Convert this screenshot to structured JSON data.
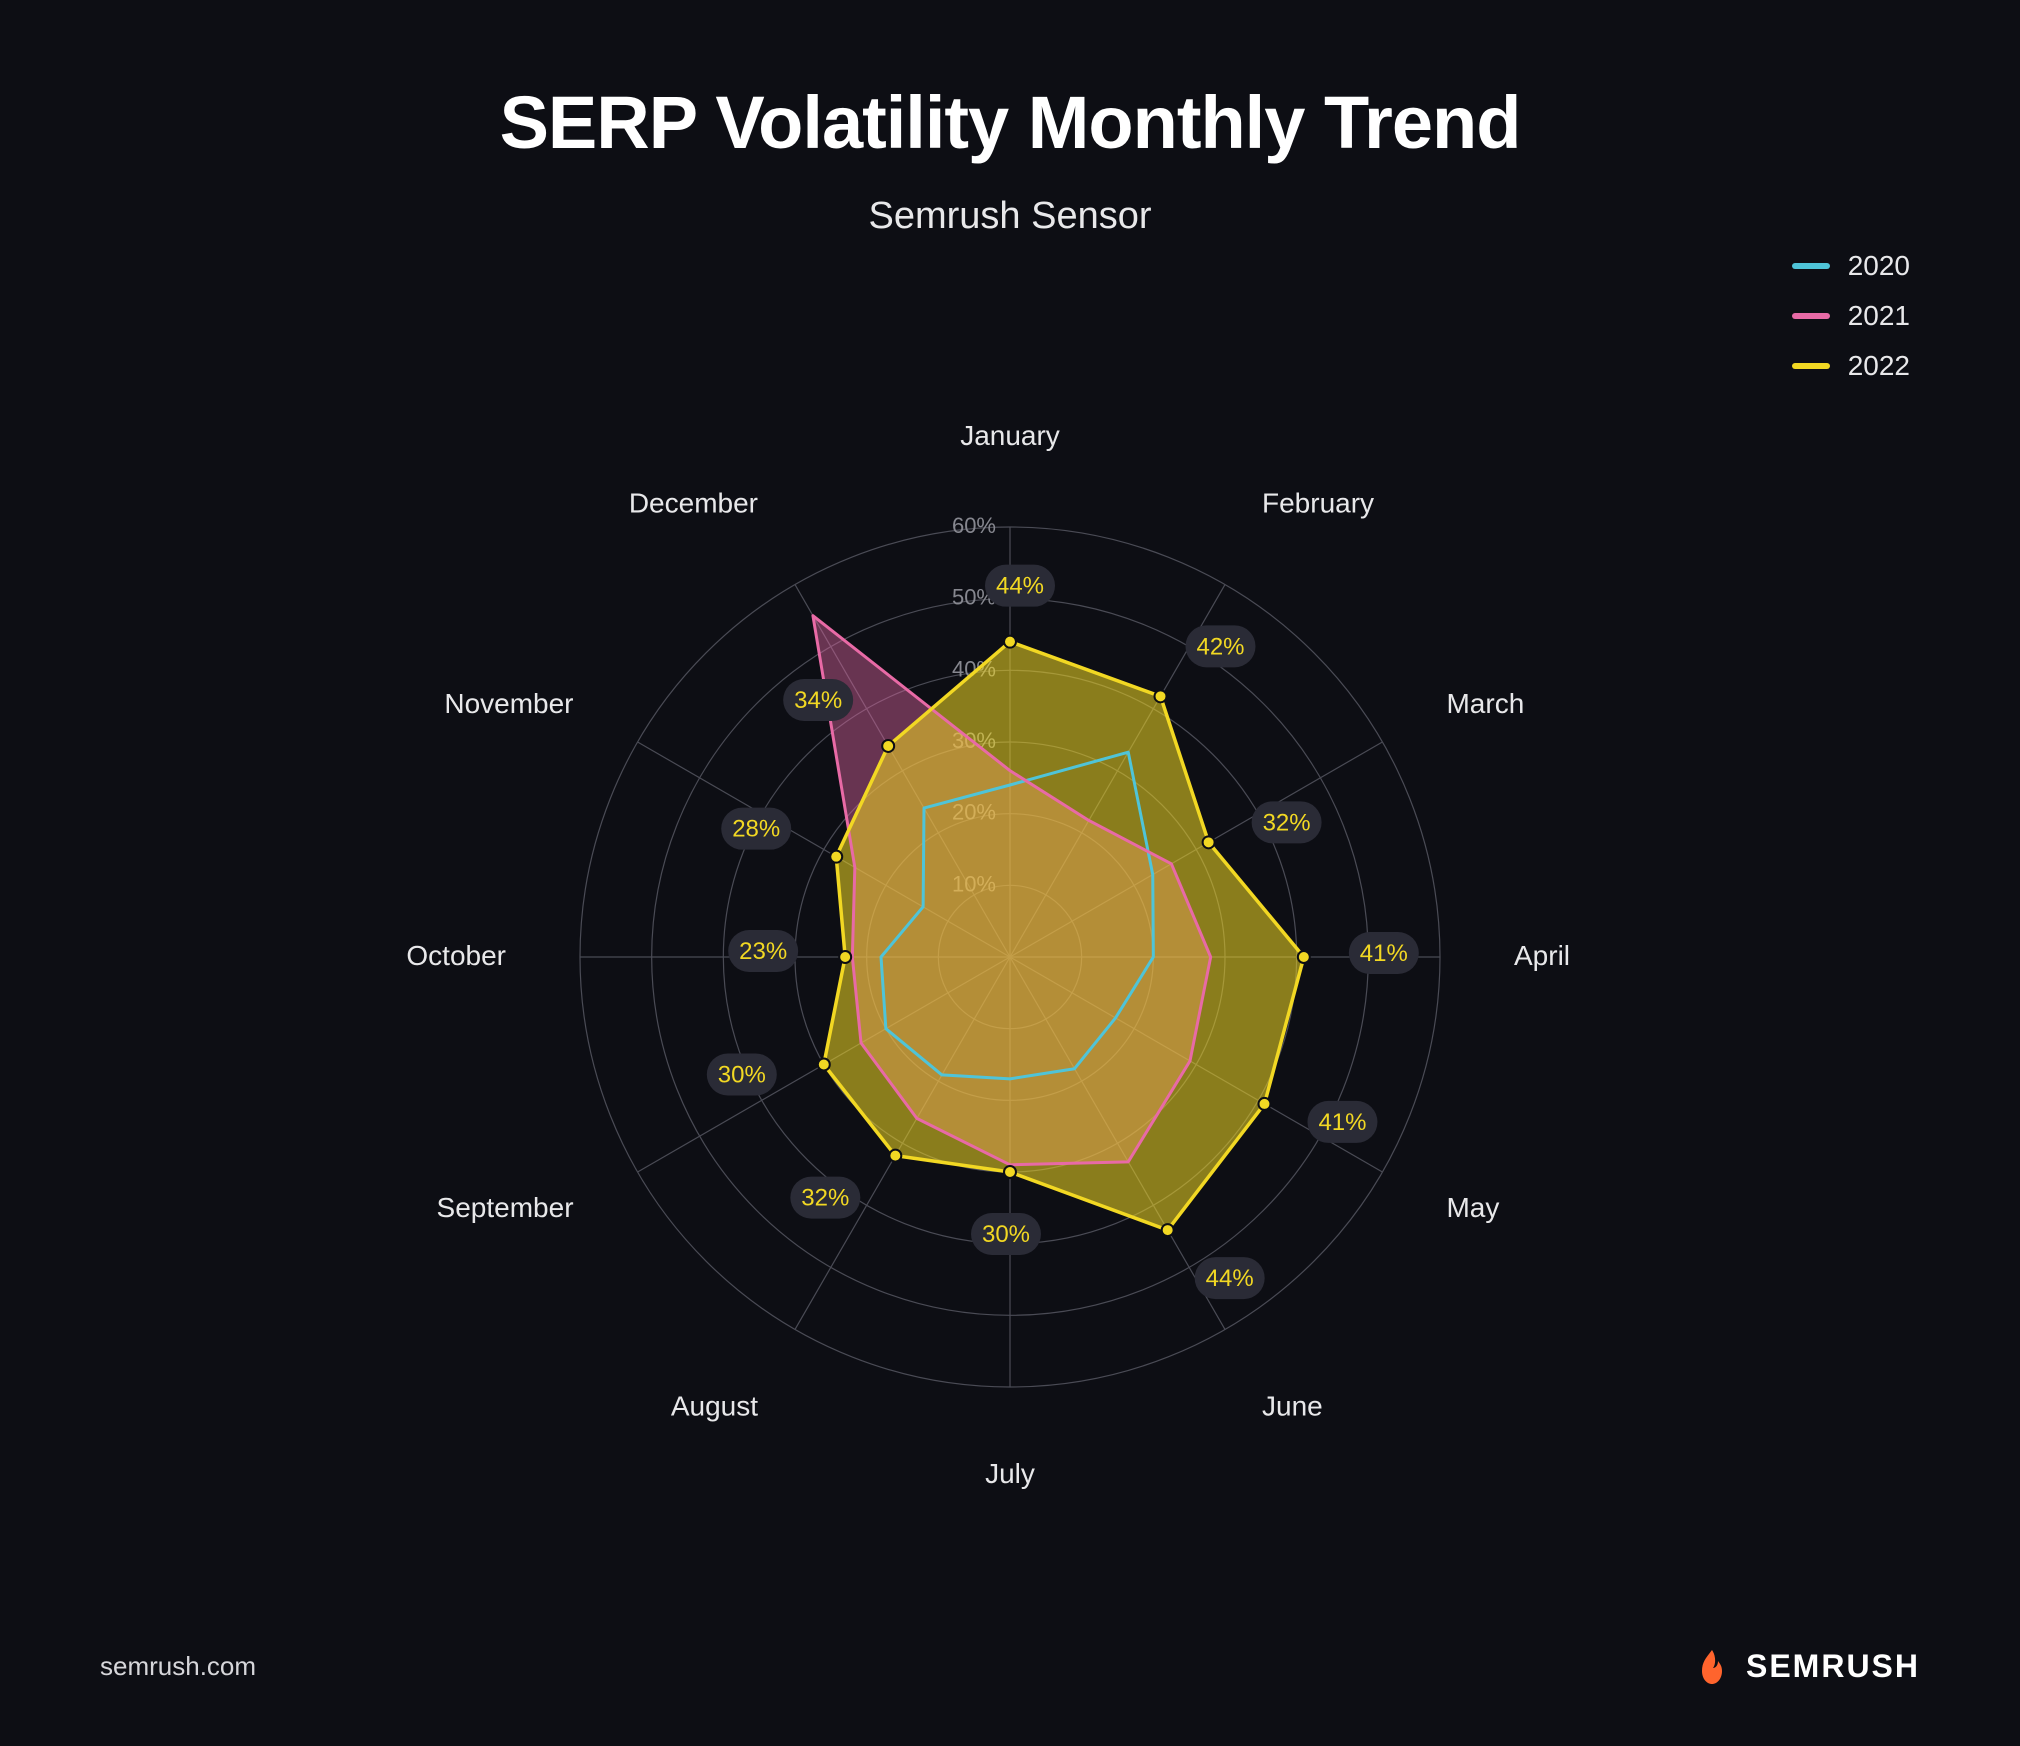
{
  "title": "SERP Volatility Monthly Trend",
  "subtitle": "Semrush Sensor",
  "footer_source": "semrush.com",
  "brand": "SEMRUSH",
  "brand_icon_color": "#ff642d",
  "background_color": "#0d0e14",
  "chart": {
    "type": "radar",
    "categories": [
      "January",
      "February",
      "March",
      "April",
      "May",
      "June",
      "July",
      "August",
      "September",
      "October",
      "November",
      "December"
    ],
    "max": 60,
    "tick_step": 10,
    "ticks": [
      10,
      20,
      30,
      40,
      50,
      60
    ],
    "grid_color": "#4a4b55",
    "label_color": "#e8e8ea",
    "tick_color": "#86878f",
    "label_fontsize": 28,
    "tick_fontsize": 22,
    "pill_bg": "#2a2b36",
    "pill_text_color": "#f2d823",
    "series": [
      {
        "name": "2020",
        "color": "#4fc4d8",
        "fill": "#4fc4d8",
        "fill_opacity": 0.0,
        "stroke_width": 3,
        "markers": false,
        "show_labels": false,
        "values": [
          24,
          33,
          23,
          20,
          17,
          18,
          17,
          19,
          20,
          18,
          14,
          24
        ]
      },
      {
        "name": "2021",
        "color": "#e86aa6",
        "fill": "#e86aa6",
        "fill_opacity": 0.42,
        "stroke_width": 3,
        "markers": false,
        "show_labels": false,
        "values": [
          26,
          22,
          26,
          28,
          29,
          33,
          29,
          26,
          24,
          22,
          25,
          55
        ]
      },
      {
        "name": "2022",
        "color": "#f2d823",
        "fill": "#f2d823",
        "fill_opacity": 0.55,
        "stroke_width": 3.5,
        "markers": true,
        "marker_radius": 6,
        "show_labels": true,
        "values": [
          44,
          42,
          32,
          41,
          41,
          44,
          30,
          32,
          30,
          23,
          28,
          34
        ]
      }
    ]
  },
  "legend": {
    "items": [
      {
        "label": "2020",
        "color": "#4fc4d8"
      },
      {
        "label": "2021",
        "color": "#e86aa6"
      },
      {
        "label": "2022",
        "color": "#f2d823"
      }
    ]
  }
}
